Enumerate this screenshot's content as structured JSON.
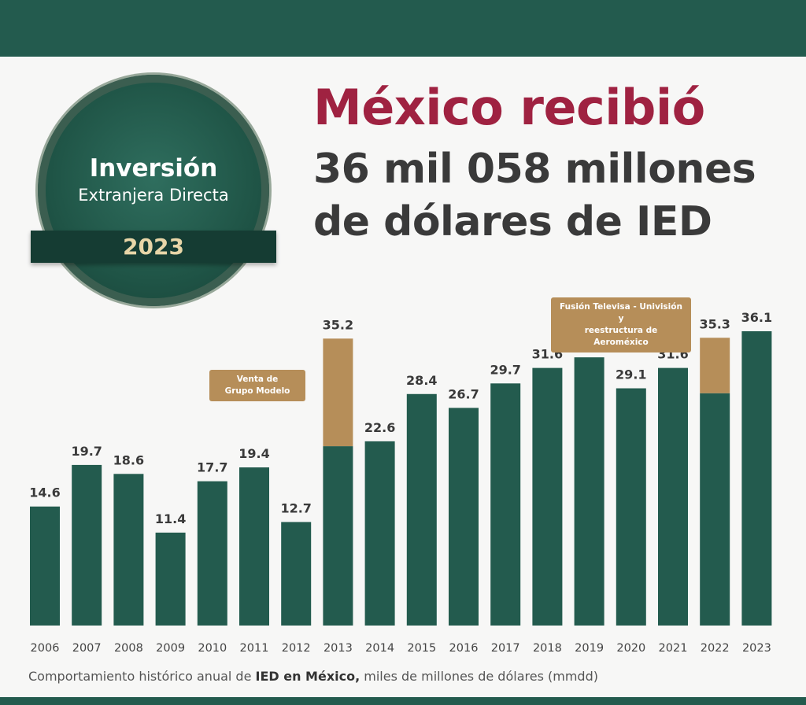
{
  "header": {
    "title": "México recibió",
    "subtitle_line1": "36 mil 058 millones",
    "subtitle_line2": "de dólares de IED"
  },
  "badge": {
    "line1": "Inversión",
    "line2": "Extranjera Directa",
    "year": "2023"
  },
  "colors": {
    "green": "#235b4e",
    "gold": "#b68e59",
    "maroon": "#9f2241",
    "text": "#3a3a3a"
  },
  "annotations": [
    {
      "text_line1": "Venta de",
      "text_line2": "Grupo Modelo",
      "year": "2013"
    },
    {
      "text_line1": "Fusión Televisa - Univisión y",
      "text_line2": "reestructura de Aeroméxico",
      "year": "2022"
    }
  ],
  "caption": {
    "prefix": "Comportamiento histórico anual de ",
    "bold": "IED en México,",
    "suffix": " miles de millones de dólares (mmdd)"
  },
  "chart_data": {
    "type": "bar",
    "stacked": true,
    "categories": [
      "2006",
      "2007",
      "2008",
      "2009",
      "2010",
      "2011",
      "2012",
      "2013",
      "2014",
      "2015",
      "2016",
      "2017",
      "2018",
      "2019",
      "2020",
      "2021",
      "2022",
      "2023"
    ],
    "totals": [
      14.6,
      19.7,
      18.6,
      11.4,
      17.7,
      19.4,
      12.7,
      35.2,
      22.6,
      28.4,
      26.7,
      29.7,
      31.6,
      32.9,
      29.1,
      31.6,
      35.3,
      36.1
    ],
    "series": [
      {
        "color": "#235b4e",
        "values": [
          14.6,
          19.7,
          18.6,
          11.4,
          17.7,
          19.4,
          12.7,
          22.0,
          22.6,
          28.4,
          26.7,
          29.7,
          31.6,
          32.9,
          29.1,
          31.6,
          28.5,
          36.1
        ]
      },
      {
        "color": "#b68e59",
        "values": [
          0,
          0,
          0,
          0,
          0,
          0,
          0,
          13.2,
          0,
          0,
          0,
          0,
          0,
          0,
          0,
          0,
          6.8,
          0
        ]
      }
    ],
    "ylim": [
      0,
      36.1
    ],
    "grid": false,
    "yaxis_visible": false
  }
}
